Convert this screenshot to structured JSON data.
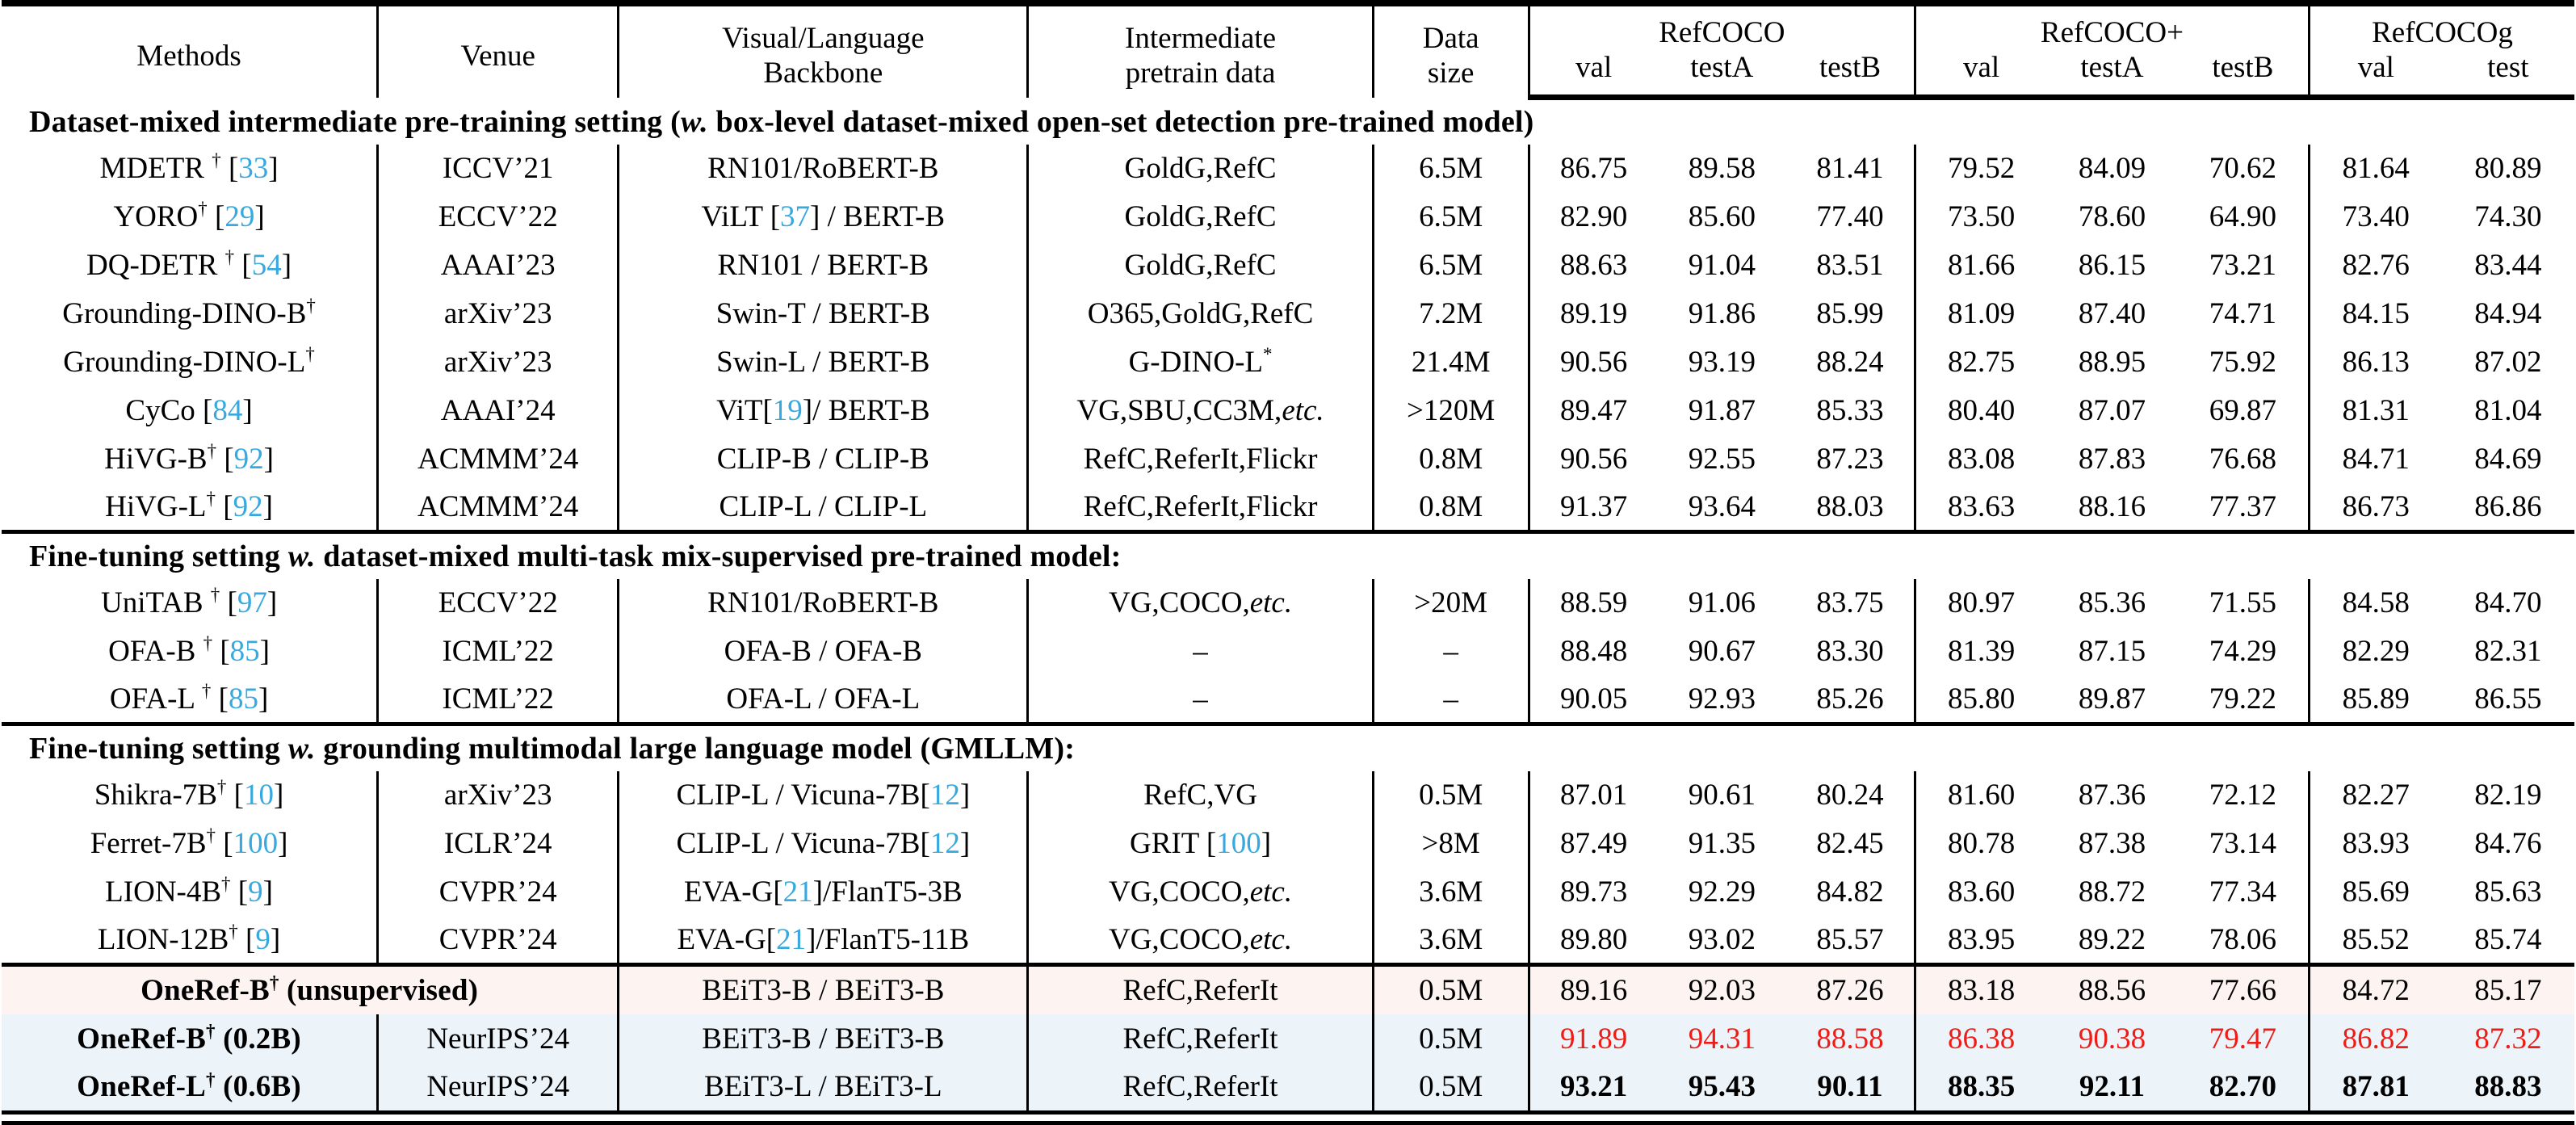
{
  "colors": {
    "citation_blue": "#38a9de",
    "highlight_red": "#ed1c16",
    "row_pink_bg": "#fdf4f1",
    "row_blue_bg": "#edf4f9"
  },
  "header": {
    "methods": "Methods",
    "venue": "Venue",
    "backbone_line1": "Visual/Language",
    "backbone_line2": "Backbone",
    "pretrain_line1": "Intermediate",
    "pretrain_line2": "pretrain data",
    "size_line1": "Data",
    "size_line2": "size",
    "groups": [
      {
        "label": "RefCOCO",
        "subcols": [
          "val",
          "testA",
          "testB"
        ]
      },
      {
        "label": "RefCOCO+",
        "subcols": [
          "val",
          "testA",
          "testB"
        ]
      },
      {
        "label": "RefCOCOg",
        "subcols": [
          "val",
          "test"
        ]
      }
    ]
  },
  "table": {
    "sections": [
      {
        "title": "[b]Dataset-mixed intermediate pre-training setting ([i]w.[/i] box-level dataset-mixed open-set detection pre-trained model)[/b]",
        "rows": [
          {
            "method": "MDETR [sup]†[/sup] [[c]33[/c]]",
            "venue": "ICCV’21",
            "backbone": "RN101/RoBERT-B",
            "pretrain": "GoldG,RefC",
            "size": "6.5M",
            "scores": [
              "86.75",
              "89.58",
              "81.41",
              "79.52",
              "84.09",
              "70.62",
              "81.64",
              "80.89"
            ],
            "cls": "",
            "bg": "",
            "venue_span": false
          },
          {
            "method": "YORO[sup]†[/sup] [[c]29[/c]]",
            "venue": "ECCV’22",
            "backbone": "ViLT [[c]37[/c]] / BERT-B",
            "pretrain": "GoldG,RefC",
            "size": "6.5M",
            "scores": [
              "82.90",
              "85.60",
              "77.40",
              "73.50",
              "78.60",
              "64.90",
              "73.40",
              "74.30"
            ],
            "cls": "",
            "bg": "",
            "venue_span": false
          },
          {
            "method": "DQ-DETR [sup]†[/sup] [[c]54[/c]]",
            "venue": "AAAI’23",
            "backbone": "RN101 / BERT-B",
            "pretrain": "GoldG,RefC",
            "size": "6.5M",
            "scores": [
              "88.63",
              "91.04",
              "83.51",
              "81.66",
              "86.15",
              "73.21",
              "82.76",
              "83.44"
            ],
            "cls": "",
            "bg": "",
            "venue_span": false
          },
          {
            "method": "Grounding-DINO-B[sup]†[/sup]",
            "venue": "arXiv’23",
            "backbone": "Swin-T / BERT-B",
            "pretrain": "O365,GoldG,RefC",
            "size": "7.2M",
            "scores": [
              "89.19",
              "91.86",
              "85.99",
              "81.09",
              "87.40",
              "74.71",
              "84.15",
              "84.94"
            ],
            "cls": "",
            "bg": "",
            "venue_span": false
          },
          {
            "method": "Grounding-DINO-L[sup]†[/sup]",
            "venue": "arXiv’23",
            "backbone": "Swin-L / BERT-B",
            "pretrain": "G-DINO-L[sup]*[/sup]",
            "size": "21.4M",
            "scores": [
              "90.56",
              "93.19",
              "88.24",
              "82.75",
              "88.95",
              "75.92",
              "86.13",
              "87.02"
            ],
            "cls": "",
            "bg": "",
            "venue_span": false
          },
          {
            "method": "CyCo [[c]84[/c]]",
            "venue": "AAAI’24",
            "backbone": "ViT[[c]19[/c]]/ BERT-B",
            "pretrain": "VG,SBU,CC3M,[i]etc.[/i]",
            "size": ">120M",
            "scores": [
              "89.47",
              "91.87",
              "85.33",
              "80.40",
              "87.07",
              "69.87",
              "81.31",
              "81.04"
            ],
            "cls": "",
            "bg": "",
            "venue_span": false
          },
          {
            "method": "HiVG-B[sup]†[/sup] [[c]92[/c]]",
            "venue": "ACMMM’24",
            "backbone": "CLIP-B / CLIP-B",
            "pretrain": "RefC,ReferIt,Flickr",
            "size": "0.8M",
            "scores": [
              "90.56",
              "92.55",
              "87.23",
              "83.08",
              "87.83",
              "76.68",
              "84.71",
              "84.69"
            ],
            "cls": "",
            "bg": "",
            "venue_span": false
          },
          {
            "method": "HiVG-L[sup]†[/sup] [[c]92[/c]]",
            "venue": "ACMMM’24",
            "backbone": "CLIP-L / CLIP-L",
            "pretrain": "RefC,ReferIt,Flickr",
            "size": "0.8M",
            "scores": [
              "91.37",
              "93.64",
              "88.03",
              "83.63",
              "88.16",
              "77.37",
              "86.73",
              "86.86"
            ],
            "cls": "",
            "bg": "",
            "venue_span": false
          }
        ]
      },
      {
        "title": "[b]Fine-tuning setting [i]w.[/i] dataset-mixed multi-task mix-supervised pre-trained model:[/b]",
        "rows": [
          {
            "method": "UniTAB [sup]†[/sup] [[c]97[/c]]",
            "venue": "ECCV’22",
            "backbone": "RN101/RoBERT-B",
            "pretrain": "VG,COCO,[i]etc.[/i]",
            "size": ">20M",
            "scores": [
              "88.59",
              "91.06",
              "83.75",
              "80.97",
              "85.36",
              "71.55",
              "84.58",
              "84.70"
            ],
            "cls": "",
            "bg": "",
            "venue_span": false
          },
          {
            "method": "OFA-B [sup]†[/sup] [[c]85[/c]]",
            "venue": "ICML’22",
            "backbone": "OFA-B / OFA-B",
            "pretrain": "–",
            "size": "–",
            "scores": [
              "88.48",
              "90.67",
              "83.30",
              "81.39",
              "87.15",
              "74.29",
              "82.29",
              "82.31"
            ],
            "cls": "",
            "bg": "",
            "venue_span": false
          },
          {
            "method": "OFA-L [sup]†[/sup] [[c]85[/c]]",
            "venue": "ICML’22",
            "backbone": "OFA-L / OFA-L",
            "pretrain": "–",
            "size": "–",
            "scores": [
              "90.05",
              "92.93",
              "85.26",
              "85.80",
              "89.87",
              "79.22",
              "85.89",
              "86.55"
            ],
            "cls": "",
            "bg": "",
            "venue_span": false
          }
        ]
      },
      {
        "title": "[b]Fine-tuning setting [i]w.[/i] grounding multimodal large language model (GMLLM):[/b]",
        "rows": [
          {
            "method": "Shikra-7B[sup]†[/sup] [[c]10[/c]]",
            "venue": "arXiv’23",
            "backbone": "CLIP-L / Vicuna-7B[[c]12[/c]]",
            "pretrain": "RefC,VG",
            "size": "0.5M",
            "scores": [
              "87.01",
              "90.61",
              "80.24",
              "81.60",
              "87.36",
              "72.12",
              "82.27",
              "82.19"
            ],
            "cls": "",
            "bg": "",
            "venue_span": false
          },
          {
            "method": "Ferret-7B[sup]†[/sup] [[c]100[/c]]",
            "venue": "ICLR’24",
            "backbone": "CLIP-L / Vicuna-7B[[c]12[/c]]",
            "pretrain": "GRIT [[c]100[/c]]",
            "size": ">8M",
            "scores": [
              "87.49",
              "91.35",
              "82.45",
              "80.78",
              "87.38",
              "73.14",
              "83.93",
              "84.76"
            ],
            "cls": "",
            "bg": "",
            "venue_span": false
          },
          {
            "method": "LION-4B[sup]†[/sup] [[c]9[/c]]",
            "venue": "CVPR’24",
            "backbone": "EVA-G[[c]21[/c]]/FlanT5-3B",
            "pretrain": "VG,COCO,[i]etc.[/i]",
            "size": "3.6M",
            "scores": [
              "89.73",
              "92.29",
              "84.82",
              "83.60",
              "88.72",
              "77.34",
              "85.69",
              "85.63"
            ],
            "cls": "",
            "bg": "",
            "venue_span": false
          },
          {
            "method": "LION-12B[sup]†[/sup] [[c]9[/c]]",
            "venue": "CVPR’24",
            "backbone": "EVA-G[[c]21[/c]]/FlanT5-11B",
            "pretrain": "VG,COCO,[i]etc.[/i]",
            "size": "3.6M",
            "scores": [
              "89.80",
              "93.02",
              "85.57",
              "83.95",
              "89.22",
              "78.06",
              "85.52",
              "85.74"
            ],
            "cls": "",
            "bg": "",
            "venue_span": false
          }
        ]
      },
      {
        "title": null,
        "rows": [
          {
            "method": "[b]OneRef-B[sup]†[/sup] (unsupervised)[/b]",
            "venue": "",
            "backbone": "BEiT3-B / BEiT3-B",
            "pretrain": "RefC,ReferIt",
            "size": "0.5M",
            "scores": [
              "89.16",
              "92.03",
              "87.26",
              "83.18",
              "88.56",
              "77.66",
              "84.72",
              "85.17"
            ],
            "cls": "",
            "bg": "pink",
            "venue_span": true
          },
          {
            "method": "[b]OneRef-B[sup]†[/sup] (0.2B)[/b]",
            "venue": "NeurIPS’24",
            "backbone": "BEiT3-B / BEiT3-B",
            "pretrain": "RefC,ReferIt",
            "size": "0.5M",
            "scores": [
              "91.89",
              "94.31",
              "88.58",
              "86.38",
              "90.38",
              "79.47",
              "86.82",
              "87.32"
            ],
            "cls": "red",
            "bg": "blue",
            "venue_span": false
          },
          {
            "method": "[b]OneRef-L[sup]†[/sup] (0.6B)[/b]",
            "venue": "NeurIPS’24",
            "backbone": "BEiT3-L / BEiT3-L",
            "pretrain": "RefC,ReferIt",
            "size": "0.5M",
            "scores": [
              "93.21",
              "95.43",
              "90.11",
              "88.35",
              "92.11",
              "82.70",
              "87.81",
              "88.83"
            ],
            "cls": "bold",
            "bg": "blue",
            "venue_span": false
          }
        ]
      }
    ]
  }
}
